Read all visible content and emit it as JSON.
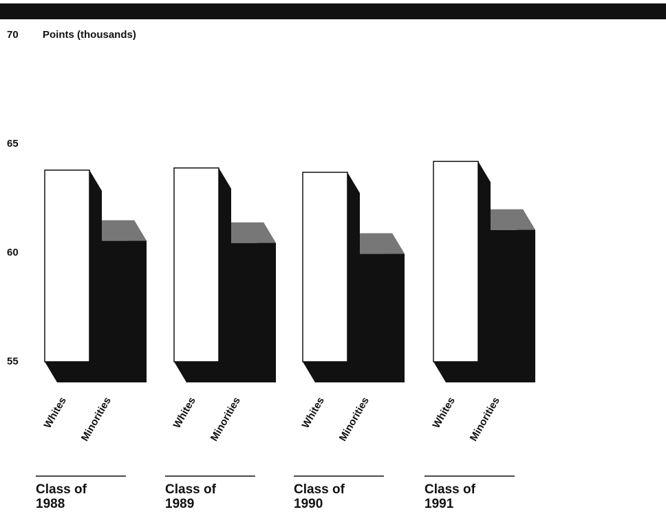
{
  "chart_data": {
    "type": "bar3d",
    "y_label": "Points (thousands)",
    "categories": [
      "Class of 1988",
      "Class of 1989",
      "Class of 1990",
      "Class of 1991"
    ],
    "series": [
      {
        "name": "Whites",
        "color": "#ffffff",
        "values": [
          63.8,
          63.9,
          63.7,
          64.2
        ]
      },
      {
        "name": "Minorities",
        "color": "#111111",
        "values": [
          61.5,
          61.4,
          60.9,
          62.0
        ]
      }
    ],
    "ylim": [
      55,
      70
    ],
    "yticks": [
      55,
      60,
      65,
      70
    ]
  }
}
